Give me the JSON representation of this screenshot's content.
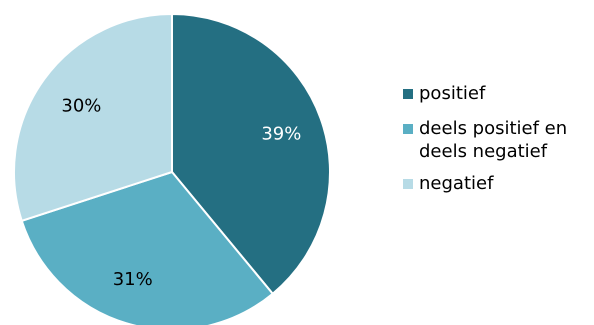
{
  "chart_data": {
    "type": "pie",
    "title": "",
    "start_angle_deg": 0,
    "direction": "clockwise",
    "slices": [
      {
        "label": "positief",
        "value": 39,
        "display": "39%",
        "color": "#246f82",
        "label_color": "#ffffff"
      },
      {
        "label": "deels positief en deels negatief",
        "value": 31,
        "display": "31%",
        "color": "#5aafc4",
        "label_color": "#000000"
      },
      {
        "label": "negatief",
        "value": 30,
        "display": "30%",
        "color": "#b7dbe6",
        "label_color": "#000000"
      }
    ],
    "legend": {
      "placement": "right",
      "entries": [
        "positief",
        "deels positief en\ndeels negatief",
        "negatief"
      ]
    }
  }
}
